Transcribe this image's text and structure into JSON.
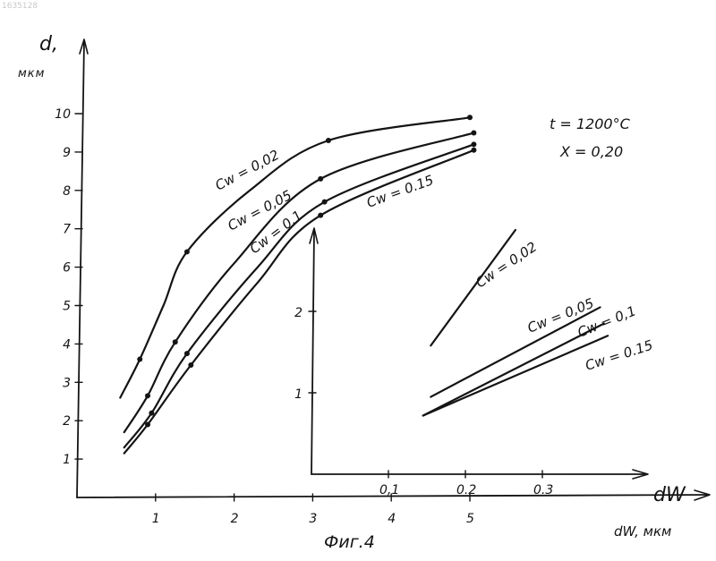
{
  "colors": {
    "ink": "#141414",
    "paper": "#ffffff",
    "corner_id": "#c8c8c8"
  },
  "corner_id": "1635128",
  "figure_caption": "Фиг.4",
  "conditions": {
    "line1": "t = 1200°C",
    "line2": "X = 0,20"
  },
  "chart_data": [
    {
      "type": "line",
      "title": "",
      "xlabel": "dW, мкм",
      "ylabel": "d,",
      "ylabel_unit": "мкм",
      "xlim": [
        0,
        7.1
      ],
      "ylim": [
        0,
        11.3
      ],
      "x_ticks": [
        "1",
        "2",
        "3",
        "4",
        "5"
      ],
      "y_ticks": [
        "1",
        "2",
        "3",
        "4",
        "5",
        "6",
        "7",
        "8",
        "9",
        "10"
      ],
      "grid": false,
      "series": [
        {
          "name": "Cw = 0,02",
          "label_text": "Cw = 0,02",
          "points": [
            [
              0.55,
              2.6
            ],
            [
              0.8,
              3.6
            ],
            [
              1.1,
              5.0
            ],
            [
              1.4,
              6.4
            ],
            [
              2.2,
              8.0
            ],
            [
              3.2,
              9.3
            ],
            [
              5.0,
              9.9
            ]
          ],
          "markers": [
            [
              0.8,
              3.6
            ],
            [
              1.4,
              6.4
            ],
            [
              3.2,
              9.3
            ],
            [
              5.0,
              9.9
            ]
          ]
        },
        {
          "name": "Cw = 0,05",
          "label_text": "Cw = 0,05",
          "points": [
            [
              0.6,
              1.7
            ],
            [
              0.9,
              2.65
            ],
            [
              1.25,
              4.05
            ],
            [
              2.0,
              6.1
            ],
            [
              3.1,
              8.3
            ],
            [
              5.05,
              9.5
            ]
          ],
          "markers": [
            [
              0.9,
              2.65
            ],
            [
              1.25,
              4.05
            ],
            [
              3.1,
              8.3
            ],
            [
              5.05,
              9.5
            ]
          ]
        },
        {
          "name": "Cw = 0,1",
          "label_text": "Cw = 0,1",
          "points": [
            [
              0.6,
              1.3
            ],
            [
              0.95,
              2.2
            ],
            [
              1.4,
              3.75
            ],
            [
              2.3,
              6.0
            ],
            [
              3.15,
              7.7
            ],
            [
              5.05,
              9.2
            ]
          ],
          "markers": [
            [
              0.95,
              2.2
            ],
            [
              1.4,
              3.75
            ],
            [
              3.15,
              7.7
            ],
            [
              5.05,
              9.2
            ]
          ]
        },
        {
          "name": "Cw = 0.15",
          "label_text": "Cw = 0.15",
          "points": [
            [
              0.6,
              1.15
            ],
            [
              0.9,
              1.9
            ],
            [
              1.45,
              3.45
            ],
            [
              2.3,
              5.6
            ],
            [
              3.1,
              7.35
            ],
            [
              5.05,
              9.05
            ]
          ],
          "markers": [
            [
              0.9,
              1.9
            ],
            [
              1.45,
              3.45
            ],
            [
              3.1,
              7.35
            ],
            [
              5.05,
              9.05
            ]
          ]
        }
      ]
    },
    {
      "type": "line",
      "title": "",
      "xlabel": "dW",
      "ylabel": "",
      "xlim": [
        0,
        0.41
      ],
      "ylim": [
        0,
        3.0
      ],
      "x_ticks": [
        "0,1",
        "0.2",
        "0.3"
      ],
      "y_ticks": [
        "1",
        "2"
      ],
      "grid": false,
      "series": [
        {
          "name": "Cw = 0,02",
          "label_text": "Cw = 0,02",
          "points": [
            [
              0.155,
              1.58
            ],
            [
              0.265,
              3.0
            ]
          ]
        },
        {
          "name": "Cw = 0,05",
          "label_text": "Cw = 0,05",
          "points": [
            [
              0.155,
              0.95
            ],
            [
              0.375,
              2.05
            ]
          ]
        },
        {
          "name": "Cw = 0,1",
          "label_text": "Cw = 0,1",
          "points": [
            [
              0.145,
              0.72
            ],
            [
              0.38,
              1.85
            ]
          ]
        },
        {
          "name": "Cw = 0.15",
          "label_text": "Cw = 0.15",
          "points": [
            [
              0.145,
              0.72
            ],
            [
              0.385,
              1.7
            ]
          ]
        }
      ]
    }
  ]
}
